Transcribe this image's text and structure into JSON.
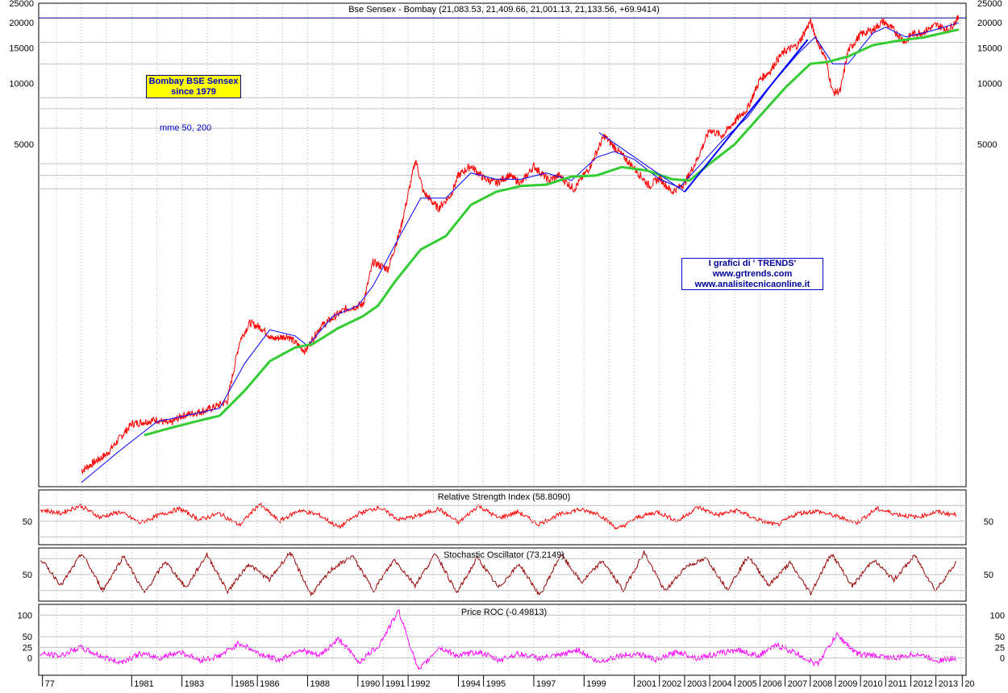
{
  "title": "Bse Sensex - Bombay (21,083.53, 21,409.66, 21,001.13, 21,133.56, +69.9414)",
  "annotations": {
    "box_line1": "Bombay BSE Sensex",
    "box_line2": "since 1979",
    "mme": "mme 50, 200",
    "trends_line1": "I grafici di ' TRENDS'",
    "trends_line2": "www.grtrends.com",
    "trends_line3": "www.analisitecnicaonline.it"
  },
  "colors": {
    "price": "#ff0000",
    "ema50": "#0000ff",
    "ema200": "#33cc33",
    "trendline": "#0000ff",
    "rsi": "#ff0000",
    "stochastic": "#990000",
    "stochastic_signal": "#000000",
    "roc": "#ff00ff",
    "grid": "#c0c0c0"
  },
  "chart_data": [
    {
      "type": "line",
      "panel": "price",
      "title": "Bse Sensex - Bombay (21,083.53, 21,409.66, 21,001.13, 21,133.56, +69.9414)",
      "y_scale": "log",
      "ylim": [
        100,
        25000
      ],
      "y_ticks": [
        "5000",
        "10000",
        "15000",
        "20000",
        "25000"
      ],
      "grid": true,
      "series": [
        {
          "x": [
            1979.0,
            1980.0,
            1981.0,
            1982.0,
            1982.5,
            1983.0,
            1984.0,
            1984.8,
            1985.3,
            1985.7,
            1986.2,
            1986.6,
            1987.2,
            1987.9,
            1988.5,
            1989.5,
            1990.2,
            1990.6,
            1991.2,
            1991.7,
            1992.3,
            1992.6,
            1993.2,
            1993.7,
            1994.0,
            1994.5,
            1995.0,
            1995.5,
            1996.0,
            1996.5,
            1997.0,
            1997.6,
            1998.0,
            1998.6,
            1999.2,
            1999.8,
            2000.1,
            2000.6,
            2001.0,
            2001.6,
            2002.0,
            2002.5,
            2003.0,
            2003.5,
            2004.0,
            2004.5,
            2005.0,
            2005.5,
            2006.0,
            2006.4,
            2006.7,
            2007.0,
            2007.5,
            2008.0,
            2008.3,
            2008.6,
            2008.9,
            2009.2,
            2009.5,
            2010.0,
            2010.5,
            2010.9,
            2011.3,
            2011.8,
            2012.0,
            2012.5,
            2013.0,
            2013.5,
            2013.9
          ],
          "values": [
            120,
            145,
            205,
            215,
            205,
            225,
            240,
            265,
            530,
            650,
            610,
            540,
            560,
            470,
            620,
            760,
            800,
            1300,
            1200,
            1900,
            4200,
            2900,
            2400,
            2800,
            3500,
            3900,
            3400,
            3200,
            3500,
            3200,
            3900,
            3300,
            3500,
            3000,
            3800,
            5500,
            5000,
            4300,
            3800,
            3100,
            3400,
            2900,
            3200,
            4200,
            5900,
            5500,
            6500,
            7500,
            10500,
            11500,
            13200,
            14500,
            15500,
            20300,
            16000,
            13500,
            9000,
            9200,
            14500,
            17500,
            18500,
            20300,
            18500,
            16000,
            17500,
            18000,
            19500,
            18500,
            21133
          ]
        },
        {
          "x": [
            1979.0,
            1980.5,
            1982.0,
            1983.5,
            1984.5,
            1985.5,
            1986.5,
            1987.5,
            1988.0,
            1989.0,
            1990.0,
            1990.6,
            1991.5,
            1992.5,
            1993.5,
            1994.5,
            1995.5,
            1996.5,
            1997.5,
            1998.5,
            1999.5,
            2000.2,
            2001.0,
            2002.0,
            2002.8,
            2003.5,
            2004.5,
            2005.5,
            2006.5,
            2007.5,
            2008.2,
            2008.9,
            2009.5,
            2010.5,
            2011.0,
            2011.8,
            2012.8,
            2013.9
          ],
          "values": [
            105,
            150,
            210,
            230,
            245,
            410,
            600,
            560,
            500,
            700,
            790,
            990,
            1600,
            2700,
            2700,
            3600,
            3350,
            3350,
            3600,
            3300,
            4300,
            4600,
            4200,
            3350,
            3050,
            3800,
            5200,
            6800,
            10000,
            14000,
            17000,
            12500,
            12500,
            17800,
            19000,
            17000,
            18200,
            20000
          ]
        },
        {
          "x": [
            1981.5,
            1982.5,
            1983.5,
            1984.5,
            1985.5,
            1986.5,
            1987.5,
            1988.2,
            1989.2,
            1990.2,
            1990.8,
            1991.5,
            1992.5,
            1993.5,
            1994.5,
            1995.5,
            1996.5,
            1997.5,
            1998.5,
            1999.5,
            2000.5,
            2001.5,
            2002.5,
            2003.2,
            2004.0,
            2005.0,
            2006.0,
            2007.0,
            2008.0,
            2008.7,
            2009.5,
            2010.5,
            2011.5,
            2012.5,
            2013.9
          ],
          "values": [
            180,
            195,
            210,
            225,
            300,
            420,
            490,
            510,
            610,
            700,
            790,
            1050,
            1500,
            1750,
            2500,
            2900,
            3100,
            3150,
            3450,
            3500,
            3850,
            3700,
            3350,
            3300,
            4000,
            5000,
            6900,
            9500,
            12500,
            12800,
            13600,
            15500,
            16300,
            16900,
            18500
          ]
        },
        {
          "x": [
            2003.0,
            2007.9
          ],
          "values": [
            2900,
            16500
          ]
        },
        {
          "x": [
            1999.6,
            2003.0
          ],
          "values": [
            5700,
            2900
          ]
        }
      ]
    },
    {
      "type": "line",
      "panel": "rsi",
      "title": "Relative Strength Index (58.8090)",
      "y_ticks": [
        "50"
      ],
      "values": [
        65,
        60,
        70,
        55,
        62,
        48,
        58,
        66,
        52,
        60,
        45,
        72,
        50,
        64,
        58,
        42,
        60,
        68,
        52,
        57,
        66,
        48,
        70,
        54,
        62,
        46,
        58,
        65,
        60,
        40,
        55,
        62,
        50,
        68,
        58,
        64,
        52,
        45,
        60,
        63,
        56,
        48,
        66,
        59,
        55,
        62,
        58
      ]
    },
    {
      "type": "line",
      "panel": "stochastic",
      "title": "Stochastic Oscillator (73.2149)",
      "y_ticks": [
        "50"
      ],
      "values": [
        80,
        30,
        90,
        20,
        85,
        15,
        75,
        25,
        88,
        18,
        70,
        40,
        92,
        12,
        60,
        85,
        20,
        78,
        30,
        90,
        15,
        82,
        25,
        70,
        10,
        88,
        35,
        76,
        20,
        92,
        18,
        65,
        80,
        22,
        85,
        30,
        72,
        15,
        90,
        28,
        78,
        40,
        86,
        20,
        73
      ]
    },
    {
      "type": "line",
      "panel": "roc",
      "title": "Price ROC (-0.49813)",
      "y_ticks": [
        "0",
        "25",
        "50",
        "100"
      ],
      "values": [
        10,
        5,
        25,
        5,
        -10,
        10,
        0,
        15,
        -5,
        5,
        35,
        10,
        -5,
        20,
        5,
        45,
        -10,
        30,
        110,
        -30,
        25,
        5,
        15,
        -5,
        10,
        0,
        5,
        20,
        -10,
        5,
        10,
        -5,
        15,
        0,
        10,
        20,
        5,
        30,
        10,
        -15,
        55,
        10,
        5,
        0,
        10,
        -5,
        -1
      ]
    }
  ],
  "x_axis_labels": [
    "77",
    "1981",
    "1983",
    "1985",
    "1986",
    "1988",
    "1990",
    "1991",
    "1992",
    "1994",
    "1995",
    "1997",
    "1999",
    "2001",
    "2002",
    "2003",
    "2004",
    "2005",
    "2006",
    "2007",
    "2008",
    "2009",
    "2010",
    "2011",
    "2012",
    "2013",
    "20"
  ]
}
